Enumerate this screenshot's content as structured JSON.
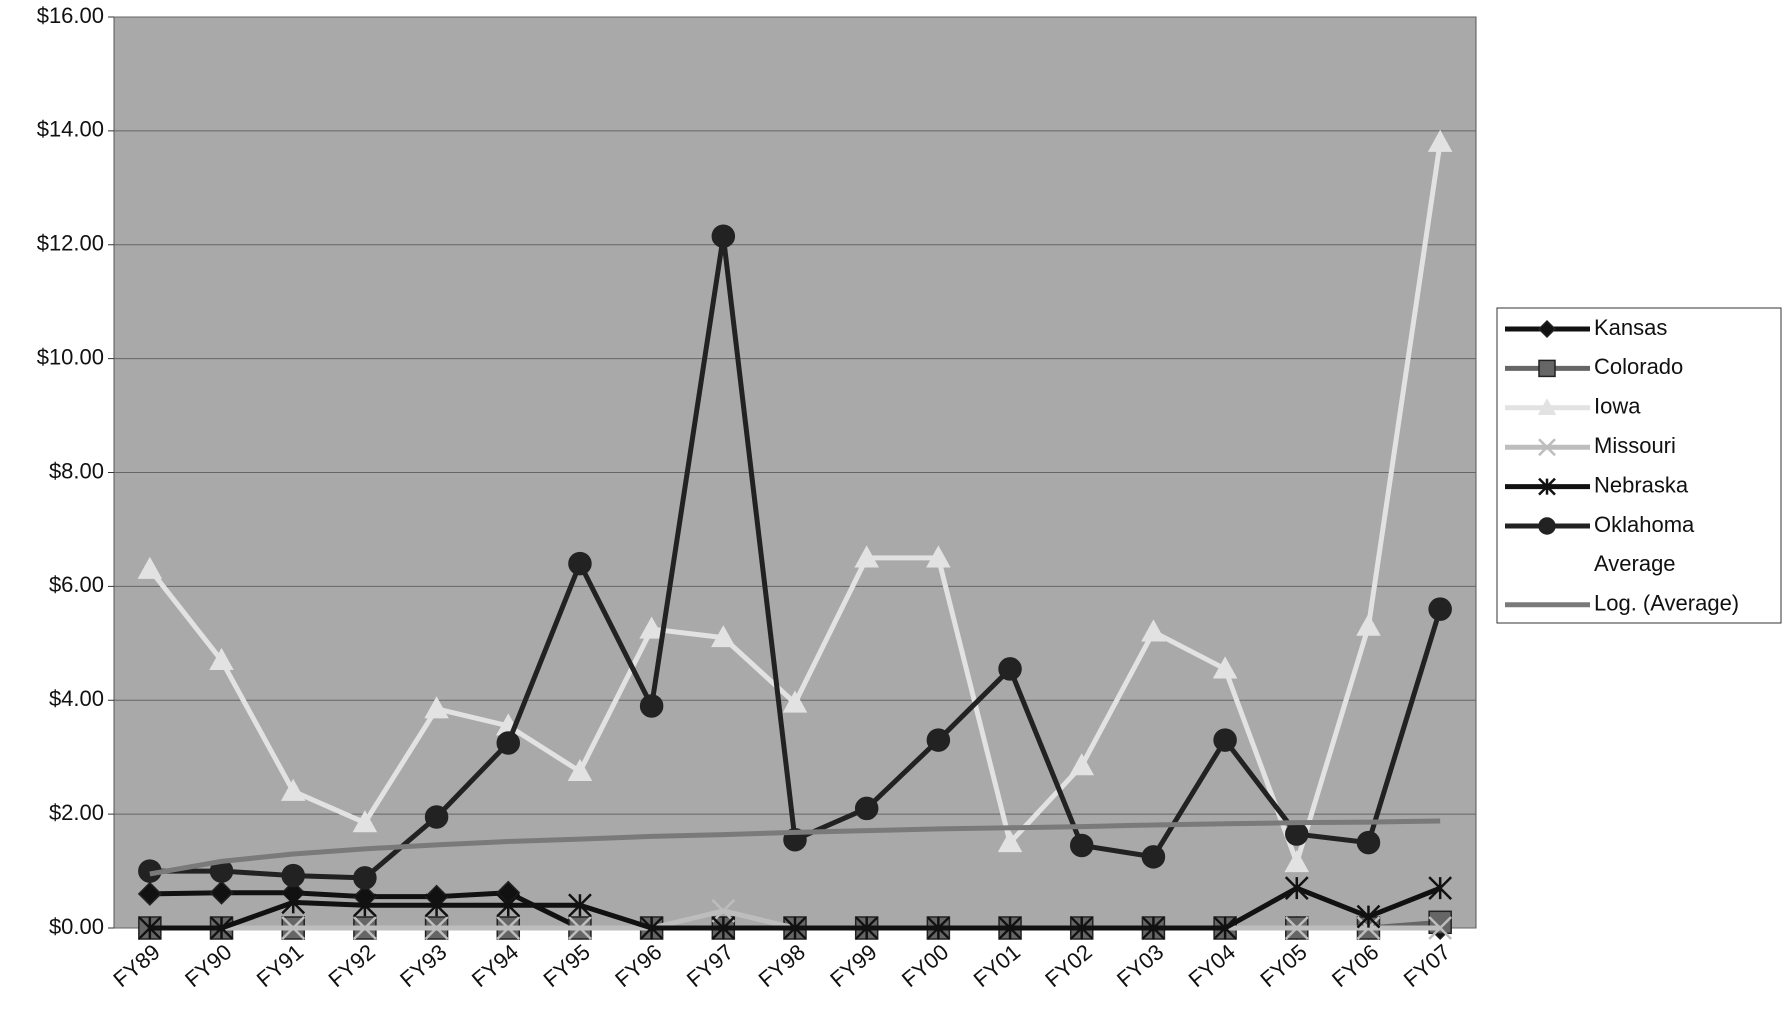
{
  "chart_data": {
    "type": "line",
    "categories": [
      "FY89",
      "FY90",
      "FY91",
      "FY92",
      "FY93",
      "FY94",
      "FY95",
      "FY96",
      "FY97",
      "FY98",
      "FY99",
      "FY00",
      "FY01",
      "FY02",
      "FY03",
      "FY04",
      "FY05",
      "FY06",
      "FY07"
    ],
    "ylim": [
      0,
      16
    ],
    "yticks": [
      {
        "value": 0,
        "label": "$0.00"
      },
      {
        "value": 2,
        "label": "$2.00"
      },
      {
        "value": 4,
        "label": "$4.00"
      },
      {
        "value": 6,
        "label": "$6.00"
      },
      {
        "value": 8,
        "label": "$8.00"
      },
      {
        "value": 10,
        "label": "$10.00"
      },
      {
        "value": 12,
        "label": "$12.00"
      },
      {
        "value": 14,
        "label": "$14.00"
      },
      {
        "value": 16,
        "label": "$16.00"
      }
    ],
    "grid": true,
    "legend": "right",
    "series": [
      {
        "name": "Kansas",
        "color": "#111111",
        "marker": "diamond",
        "values": [
          0.6,
          0.62,
          0.62,
          0.55,
          0.55,
          0.62,
          0,
          0,
          0,
          0,
          0,
          0,
          0,
          0,
          0,
          0,
          0,
          0,
          0
        ]
      },
      {
        "name": "Colorado",
        "color": "#666666",
        "marker": "square",
        "values": [
          0,
          0,
          0,
          0,
          0,
          0,
          0,
          0,
          0,
          0,
          0,
          0,
          0,
          0,
          0,
          0,
          0,
          0,
          0.1
        ]
      },
      {
        "name": "Iowa",
        "color": "#e2e2e2",
        "marker": "triangle",
        "values": [
          6.3,
          4.7,
          2.4,
          1.85,
          3.85,
          3.55,
          2.75,
          5.25,
          5.1,
          3.95,
          6.5,
          6.5,
          1.5,
          2.85,
          5.2,
          4.55,
          1.15,
          5.3,
          13.8
        ]
      },
      {
        "name": "Missouri",
        "color": "#bdbdbd",
        "marker": "x",
        "values": [
          0,
          0,
          0,
          0,
          0,
          0,
          0,
          0,
          0.3,
          0,
          0,
          0,
          0,
          0,
          0,
          0,
          0,
          0,
          0
        ]
      },
      {
        "name": "Nebraska",
        "color": "#111111",
        "marker": "asterisk",
        "values": [
          0,
          0,
          0.45,
          0.4,
          0.4,
          0.4,
          0.4,
          0,
          0,
          0,
          0,
          0,
          0,
          0,
          0,
          0,
          0.7,
          0.2,
          0.7
        ]
      },
      {
        "name": "Oklahoma",
        "color": "#222222",
        "marker": "circle",
        "values": [
          1.0,
          1.0,
          0.92,
          0.88,
          1.95,
          3.25,
          6.4,
          3.9,
          12.15,
          1.55,
          2.1,
          3.3,
          4.55,
          1.45,
          1.25,
          3.3,
          1.65,
          1.5,
          5.6
        ]
      },
      {
        "name": "Average",
        "color": null
      },
      {
        "name": "Log. (Average)",
        "color": "#7a7a7a",
        "marker": "none",
        "values": [
          0.95,
          1.17,
          1.3,
          1.39,
          1.46,
          1.52,
          1.56,
          1.61,
          1.64,
          1.68,
          1.71,
          1.74,
          1.76,
          1.78,
          1.81,
          1.83,
          1.85,
          1.86,
          1.88
        ]
      }
    ]
  }
}
